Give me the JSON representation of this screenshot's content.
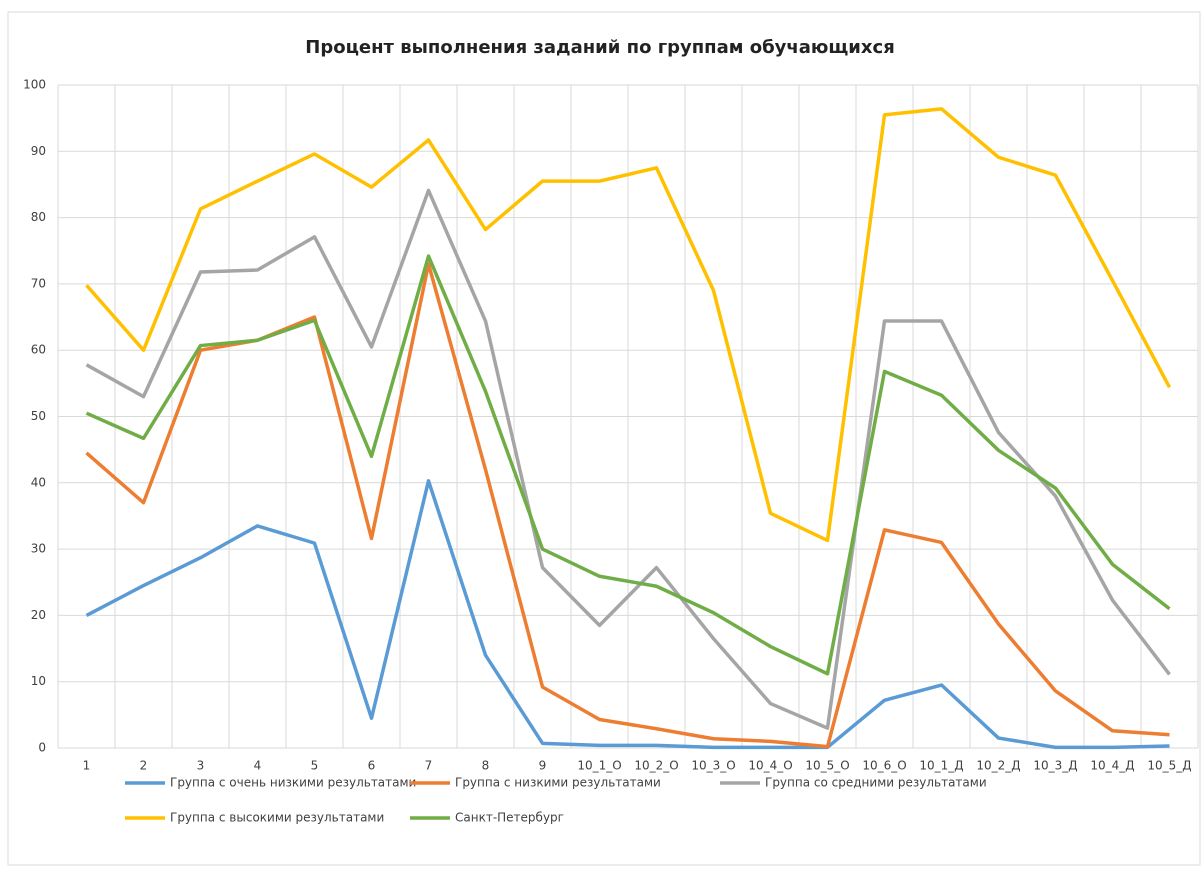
{
  "chart_data": {
    "type": "line",
    "title": "Процент выполнения заданий по группам обучающихся",
    "categories": [
      "1",
      "2",
      "3",
      "4",
      "5",
      "6",
      "7",
      "8",
      "9",
      "10_1_О",
      "10_2_О",
      "10_3_О",
      "10_4_О",
      "10_5_О",
      "10_6_О",
      "10_1_Д",
      "10_2_Д",
      "10_3_Д",
      "10_4_Д",
      "10_5_Д"
    ],
    "series": [
      {
        "name": "Группа с очень низкими результатами",
        "color": "#5b9bd5",
        "values": [
          20,
          24.5,
          28.7,
          33.5,
          30.9,
          4.5,
          40.3,
          14,
          0.7,
          0.4,
          0.4,
          0.1,
          0.1,
          0.1,
          7.2,
          9.5,
          1.5,
          0.1,
          0.1,
          0.3
        ]
      },
      {
        "name": "Группа с низкими результатами",
        "color": "#ed7d31",
        "values": [
          44.5,
          37,
          60,
          61.5,
          65,
          31.6,
          73,
          42,
          9.2,
          4.3,
          2.9,
          1.4,
          1,
          0.2,
          32.9,
          31,
          18.7,
          8.6,
          2.6,
          2
        ]
      },
      {
        "name": "Группа со средними результатами",
        "color": "#a5a5a5",
        "values": [
          57.8,
          53,
          71.8,
          72.1,
          77.1,
          60.5,
          84.1,
          64.4,
          27.2,
          18.5,
          27.2,
          16.5,
          6.7,
          3,
          64.4,
          64.4,
          47.6,
          38,
          22.3,
          11.1
        ]
      },
      {
        "name": "Группа с высокими результатами",
        "color": "#ffc000",
        "values": [
          69.8,
          60,
          81.3,
          85.5,
          89.6,
          84.6,
          91.7,
          78.2,
          85.5,
          85.5,
          87.5,
          69,
          35.4,
          31.3,
          95.5,
          96.4,
          89.1,
          86.4,
          70.5,
          54.4
        ]
      },
      {
        "name": "Санкт-Петербург",
        "color": "#70ad47",
        "values": [
          50.5,
          46.7,
          60.7,
          61.5,
          64.5,
          44,
          74.2,
          53.8,
          30,
          25.9,
          24.4,
          20.4,
          15.3,
          11.2,
          56.8,
          53.2,
          44.9,
          39.2,
          27.7,
          21
        ]
      }
    ],
    "ylim": [
      0,
      100
    ],
    "yticks": [
      0,
      10,
      20,
      30,
      40,
      50,
      60,
      70,
      80,
      90,
      100
    ],
    "grid": true
  }
}
